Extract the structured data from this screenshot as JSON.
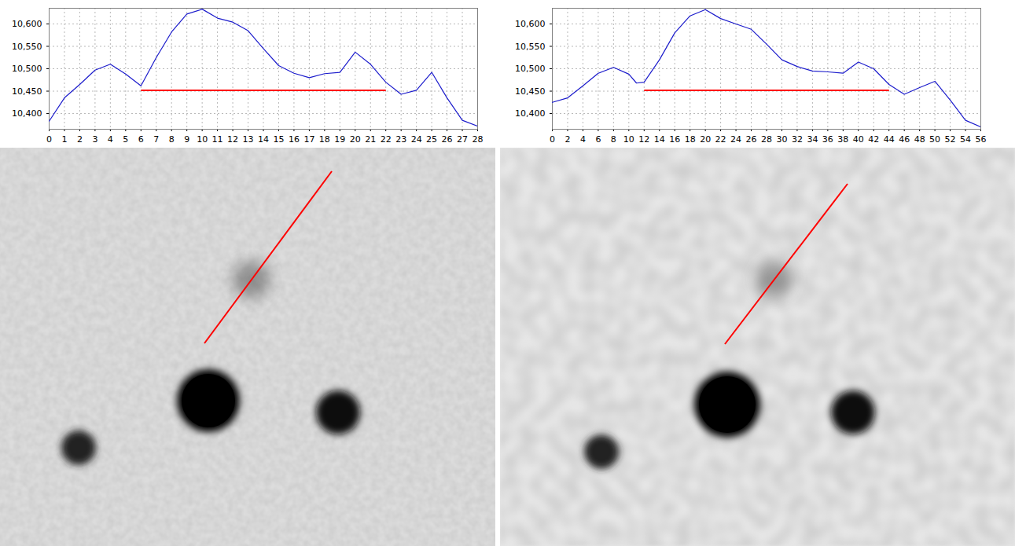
{
  "chart_data": [
    {
      "type": "line",
      "x": [
        0,
        1,
        2,
        3,
        4,
        5,
        6,
        7,
        8,
        9,
        10,
        11,
        12,
        13,
        14,
        15,
        16,
        17,
        18,
        19,
        20,
        21,
        22,
        23,
        24,
        25,
        26,
        27,
        28
      ],
      "values": [
        10383,
        10435,
        10465,
        10497,
        10510,
        10488,
        10462,
        10525,
        10582,
        10622,
        10633,
        10613,
        10604,
        10585,
        10545,
        10507,
        10490,
        10480,
        10489,
        10492,
        10537,
        10510,
        10470,
        10443,
        10452,
        10492,
        10435,
        10385,
        10372
      ],
      "color": "#1c1ccc",
      "xlim": [
        0,
        28
      ],
      "ylim": [
        10365,
        10635
      ],
      "xticks": [
        0,
        1,
        2,
        3,
        4,
        5,
        6,
        7,
        8,
        9,
        10,
        11,
        12,
        13,
        14,
        15,
        16,
        17,
        18,
        19,
        20,
        21,
        22,
        23,
        24,
        25,
        26,
        27,
        28
      ],
      "yticks": [
        {
          "value": 10400,
          "label": "10,400"
        },
        {
          "value": 10450,
          "label": "10,450"
        },
        {
          "value": 10500,
          "label": "10,500"
        },
        {
          "value": 10550,
          "label": "10,550"
        },
        {
          "value": 10600,
          "label": "10,600"
        }
      ],
      "grid": true,
      "segment": {
        "x": [
          6,
          22
        ],
        "y": 10452,
        "color": "#ff0000"
      }
    },
    {
      "type": "line",
      "x": [
        0,
        2,
        4,
        6,
        8,
        10,
        11,
        12,
        14,
        16,
        18,
        20,
        22,
        24,
        26,
        28,
        30,
        32,
        34,
        36,
        38,
        40,
        42,
        44,
        46,
        48,
        50,
        52,
        54,
        56
      ],
      "values": [
        10425,
        10435,
        10462,
        10490,
        10503,
        10488,
        10468,
        10470,
        10520,
        10580,
        10618,
        10632,
        10612,
        10600,
        10588,
        10555,
        10520,
        10505,
        10495,
        10493,
        10490,
        10515,
        10500,
        10465,
        10443,
        10458,
        10472,
        10430,
        10385,
        10370
      ],
      "color": "#1c1ccc",
      "xlim": [
        0,
        56
      ],
      "ylim": [
        10365,
        10635
      ],
      "xticks": [
        0,
        2,
        4,
        6,
        8,
        10,
        12,
        14,
        16,
        18,
        20,
        22,
        24,
        26,
        28,
        30,
        32,
        34,
        36,
        38,
        40,
        42,
        44,
        46,
        48,
        50,
        52,
        54,
        56
      ],
      "yticks": [
        {
          "value": 10400,
          "label": "10,400"
        },
        {
          "value": 10450,
          "label": "10,450"
        },
        {
          "value": 10500,
          "label": "10,500"
        },
        {
          "value": 10550,
          "label": "10,550"
        },
        {
          "value": 10600,
          "label": "10,600"
        }
      ],
      "grid": true,
      "segment": {
        "x": [
          12,
          44
        ],
        "y": 10452,
        "color": "#ff0000"
      }
    }
  ]
}
